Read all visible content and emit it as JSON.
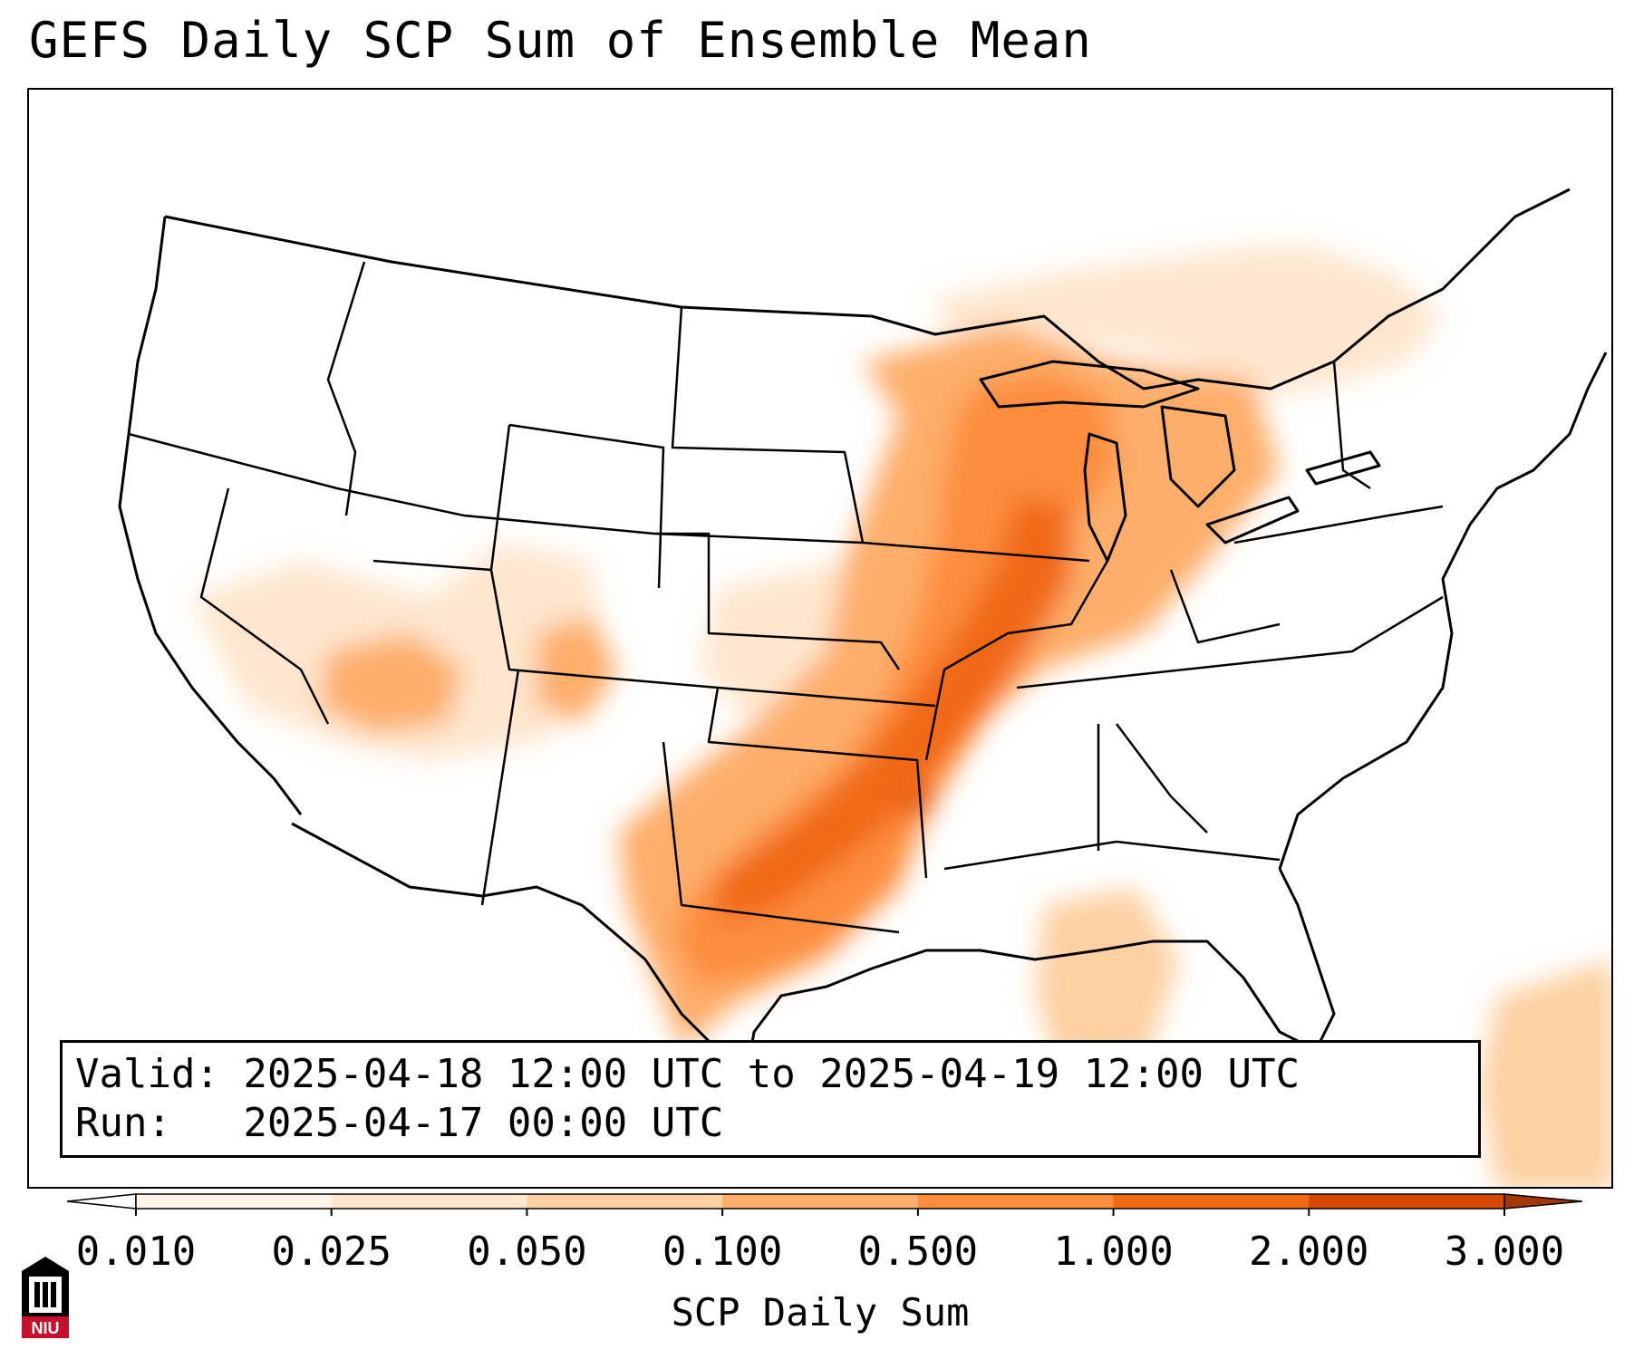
{
  "title": "GEFS Daily SCP Sum of Ensemble Mean",
  "valid_line": "Valid: 2025-04-18 12:00 UTC to 2025-04-19 12:00 UTC",
  "run_line": "Run:   2025-04-17 00:00 UTC",
  "colorbar": {
    "label": "SCP Daily Sum",
    "ticks": [
      "0.010",
      "0.025",
      "0.050",
      "0.100",
      "0.500",
      "1.000",
      "2.000",
      "3.000"
    ],
    "colors": [
      "#fff5eb",
      "#fee6ce",
      "#fdd0a2",
      "#fdae6b",
      "#fd8d3c",
      "#f16913",
      "#d94801",
      "#a63603"
    ],
    "extend": "both"
  },
  "logo": {
    "text": "NIU",
    "colors": [
      "#c8102e",
      "#000000"
    ]
  },
  "map": {
    "projection": "Lambert conformal CONUS",
    "border_color": "#000000",
    "shading_palette": "oranges"
  }
}
